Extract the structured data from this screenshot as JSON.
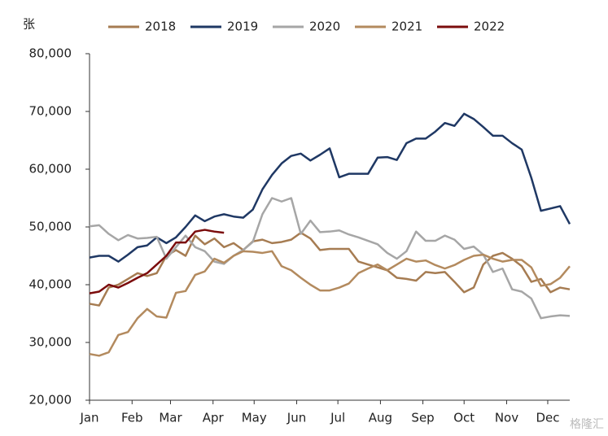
{
  "chart_data": {
    "type": "line",
    "y_label": "张",
    "watermark": "格隆汇",
    "x": [
      0,
      1,
      2,
      3,
      4,
      5,
      6,
      7,
      8,
      9,
      10,
      11,
      12,
      13,
      14,
      15,
      16,
      17,
      18,
      19,
      20,
      21,
      22,
      23,
      24,
      25,
      26,
      27,
      28,
      29,
      30,
      31,
      32,
      33,
      34,
      35,
      36,
      37,
      38,
      39,
      40,
      41,
      42,
      43,
      44,
      45,
      46,
      47,
      48,
      49,
      50
    ],
    "xlim": [
      0,
      50
    ],
    "xticks": [
      {
        "value": 0,
        "label": "Jan"
      },
      {
        "value": 4.43,
        "label": "Feb"
      },
      {
        "value": 8.43,
        "label": "Mar"
      },
      {
        "value": 12.86,
        "label": "Apr"
      },
      {
        "value": 17.14,
        "label": "May"
      },
      {
        "value": 21.57,
        "label": "Jun"
      },
      {
        "value": 25.86,
        "label": "Jul"
      },
      {
        "value": 30.29,
        "label": "Aug"
      },
      {
        "value": 34.71,
        "label": "Sep"
      },
      {
        "value": 39,
        "label": "Oct"
      },
      {
        "value": 43.43,
        "label": "Nov"
      },
      {
        "value": 47.71,
        "label": "Dec"
      }
    ],
    "ylim": [
      20000,
      80000
    ],
    "yticks": [
      {
        "value": 20000,
        "label": "20,000"
      },
      {
        "value": 30000,
        "label": "30,000"
      },
      {
        "value": 40000,
        "label": "40,000"
      },
      {
        "value": 50000,
        "label": "50,000"
      },
      {
        "value": 60000,
        "label": "60,000"
      },
      {
        "value": 70000,
        "label": "70,000"
      },
      {
        "value": 80000,
        "label": "80,000"
      }
    ],
    "legend": "top",
    "series": [
      {
        "name": "2018",
        "color": "#a67c52",
        "values": [
          36700,
          36400,
          39500,
          40000,
          41000,
          42000,
          41500,
          42000,
          45000,
          46000,
          45000,
          48500,
          47000,
          48000,
          46500,
          47200,
          46000,
          47500,
          47800,
          47200,
          47400,
          47800,
          49000,
          48000,
          46000,
          46200,
          46200,
          46200,
          44000,
          43500,
          43000,
          42500,
          41200,
          41000,
          40700,
          42200,
          42000,
          42200,
          40500,
          38700,
          39500,
          43500,
          45000,
          45500,
          44500,
          43200,
          40500,
          41000,
          38700,
          39500,
          39200
        ]
      },
      {
        "name": "2019",
        "color": "#1f3864",
        "values": [
          44700,
          45000,
          45000,
          44000,
          45200,
          46500,
          46800,
          48200,
          47200,
          48200,
          50000,
          52000,
          51000,
          51800,
          52200,
          51800,
          51600,
          53000,
          56500,
          59000,
          61000,
          62300,
          62700,
          61500,
          62500,
          63600,
          58600,
          59200,
          59200,
          59200,
          62000,
          62100,
          61600,
          64500,
          65300,
          65300,
          66500,
          68000,
          67500,
          69600,
          68700,
          67300,
          65800,
          65800,
          64500,
          63400,
          58500,
          52800,
          53200,
          53600,
          50500
        ]
      },
      {
        "name": "2020",
        "color": "#a6a6a6",
        "values": [
          50100,
          50300,
          48800,
          47700,
          48600,
          48000,
          48100,
          48300,
          44500,
          46500,
          48500,
          46500,
          45800,
          44000,
          43600,
          45000,
          46000,
          47400,
          52200,
          55000,
          54400,
          55000,
          48800,
          51100,
          49100,
          49200,
          49400,
          48700,
          48200,
          47600,
          47000,
          45500,
          44500,
          45800,
          49200,
          47600,
          47600,
          48500,
          47800,
          46200,
          46600,
          45200,
          42200,
          42800,
          39200,
          38800,
          37600,
          34200,
          34500,
          34700,
          34600
        ]
      },
      {
        "name": "2021",
        "color": "#b38a5e",
        "values": [
          28000,
          27700,
          28300,
          31300,
          31800,
          34200,
          35800,
          34500,
          34300,
          38600,
          38900,
          41700,
          42300,
          44500,
          43800,
          45000,
          45800,
          45700,
          45500,
          45800,
          43200,
          42500,
          41200,
          40000,
          39000,
          39000,
          39500,
          40200,
          42000,
          42800,
          43500,
          42500,
          43500,
          44500,
          44000,
          44200,
          43400,
          42800,
          43400,
          44300,
          45000,
          45200,
          44500,
          44000,
          44300,
          44300,
          43000,
          39800,
          40100,
          41200,
          43200
        ]
      },
      {
        "name": "2022",
        "color": "#7b0c0c",
        "values": [
          38500,
          38800,
          40000,
          39500,
          40300,
          41200,
          42000,
          43500,
          45000,
          47300,
          47300,
          49200,
          49500,
          49200,
          49000,
          null,
          null,
          null,
          null,
          null,
          null,
          null,
          null,
          null,
          null,
          null,
          null,
          null,
          null,
          null,
          null,
          null,
          null,
          null,
          null,
          null,
          null,
          null,
          null,
          null,
          null,
          null,
          null,
          null,
          null,
          null,
          null,
          null,
          null,
          null,
          null
        ]
      }
    ]
  }
}
